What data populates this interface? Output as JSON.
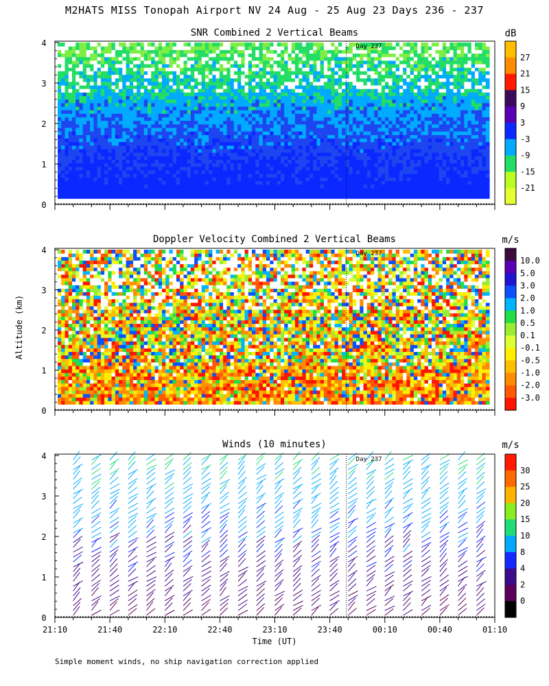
{
  "title": "M2HATS MISS Tonopah Airport NV  24 Aug - 25 Aug 23 Days 236 - 237",
  "footnote": "Simple moment winds, no ship navigation correction applied",
  "chart_data": [
    {
      "type": "heatmap",
      "title": "SNR Combined 2 Vertical Beams",
      "units": "dB",
      "ylim": [
        0,
        4
      ],
      "yticks": [
        "0",
        "1",
        "2",
        "3",
        "4"
      ],
      "marker": "Day 237",
      "colorbar": {
        "labels": [
          "27",
          "21",
          "15",
          "9",
          "3",
          "-3",
          "-9",
          "-15",
          "-21"
        ],
        "colors": [
          "#ffbe00",
          "#ff8c00",
          "#ff1a00",
          "#3c0a5a",
          "#5a00b4",
          "#0a28ff",
          "#00aaff",
          "#22dd66",
          "#bbff22",
          "#e6ff33"
        ]
      },
      "palette": [
        "#0a28ff",
        "#1e46f0",
        "#00aaff",
        "#22dd66",
        "#7fee44",
        "#bbff22",
        "#ffffff"
      ],
      "note": "Strong return (blue/cyan) near surface, green/yellow aloft with white gaps 3-4 km"
    },
    {
      "type": "heatmap",
      "title": "Doppler Velocity Combined 2 Vertical Beams",
      "units": "m/s",
      "ylim": [
        0,
        4
      ],
      "yticks": [
        "0",
        "1",
        "2",
        "3",
        "4"
      ],
      "marker": "Day 237",
      "colorbar": {
        "labels": [
          "10.0",
          "5.0",
          "3.0",
          "2.0",
          "1.0",
          "0.5",
          "0.1",
          "-0.1",
          "-0.5",
          "-1.0",
          "-2.0",
          "-3.0"
        ],
        "colors": [
          "#3c0a3c",
          "#5a00b4",
          "#1e14d2",
          "#0a50ff",
          "#00b4ff",
          "#22dd44",
          "#99ee33",
          "#ddff33",
          "#ffee00",
          "#ffbe00",
          "#ff8c00",
          "#ff5a00",
          "#ff1400"
        ]
      },
      "palette": [
        "#ff1400",
        "#ff5a00",
        "#ff8c00",
        "#ffbe00",
        "#ffee00",
        "#ddff33",
        "#99ee33",
        "#22dd44",
        "#00b4ff",
        "#0a50ff",
        "#ffffff"
      ],
      "note": "Mixed up/down motion, red/orange streaks low, green/cyan mid-levels"
    },
    {
      "type": "barbs",
      "title": "Winds (10 minutes)",
      "units": "m/s",
      "ylim": [
        0,
        4
      ],
      "yticks": [
        "0",
        "1",
        "2",
        "3",
        "4"
      ],
      "marker": "Day 237",
      "xlabel": "Time (UT)",
      "xticks": [
        "21:10",
        "21:40",
        "22:10",
        "22:40",
        "23:10",
        "23:40",
        "00:10",
        "00:40",
        "01:10"
      ],
      "profile_times_min": [
        10,
        20,
        30,
        40,
        50,
        60,
        70,
        80,
        90,
        100,
        110,
        120,
        130,
        140,
        150,
        160,
        170,
        180,
        190,
        200,
        210,
        220,
        230
      ],
      "colorbar": {
        "labels": [
          "30",
          "25",
          "20",
          "15",
          "10",
          "8",
          "4",
          "2",
          "0"
        ],
        "colors": [
          "#ff1a00",
          "#ff6a00",
          "#ffb400",
          "#88ee22",
          "#22dd77",
          "#00aaff",
          "#1428ff",
          "#3c0a8c",
          "#5a005a",
          "#000000"
        ]
      },
      "speed_profile_note": "Speeds ~2-8 m/s near surface increasing to ~12-18 m/s at 3-4 km"
    }
  ]
}
